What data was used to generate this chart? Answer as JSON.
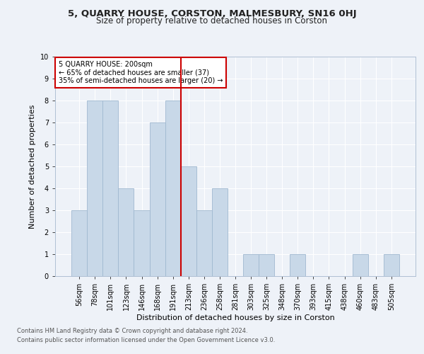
{
  "title1": "5, QUARRY HOUSE, CORSTON, MALMESBURY, SN16 0HJ",
  "title2": "Size of property relative to detached houses in Corston",
  "xlabel": "Distribution of detached houses by size in Corston",
  "ylabel": "Number of detached properties",
  "categories": [
    "56sqm",
    "78sqm",
    "101sqm",
    "123sqm",
    "146sqm",
    "168sqm",
    "191sqm",
    "213sqm",
    "236sqm",
    "258sqm",
    "281sqm",
    "303sqm",
    "325sqm",
    "348sqm",
    "370sqm",
    "393sqm",
    "415sqm",
    "438sqm",
    "460sqm",
    "483sqm",
    "505sqm"
  ],
  "values": [
    3,
    8,
    8,
    4,
    3,
    7,
    8,
    5,
    3,
    4,
    0,
    1,
    1,
    0,
    1,
    0,
    0,
    0,
    1,
    0,
    1
  ],
  "bar_color": "#c8d8e8",
  "bar_edge_color": "#a0b8d0",
  "bar_width": 1.0,
  "property_line_x": 6.5,
  "annotation_text": "5 QUARRY HOUSE: 200sqm\n← 65% of detached houses are smaller (37)\n35% of semi-detached houses are larger (20) →",
  "annotation_box_color": "#ffffff",
  "annotation_box_edge_color": "#cc0000",
  "property_line_color": "#cc0000",
  "footer1": "Contains HM Land Registry data © Crown copyright and database right 2024.",
  "footer2": "Contains public sector information licensed under the Open Government Licence v3.0.",
  "background_color": "#eef2f8",
  "ylim": [
    0,
    10
  ],
  "yticks": [
    0,
    1,
    2,
    3,
    4,
    5,
    6,
    7,
    8,
    9,
    10
  ],
  "title1_fontsize": 9.5,
  "title2_fontsize": 8.5,
  "tick_fontsize": 7.0,
  "label_fontsize": 8.0,
  "footer_fontsize": 6.0
}
